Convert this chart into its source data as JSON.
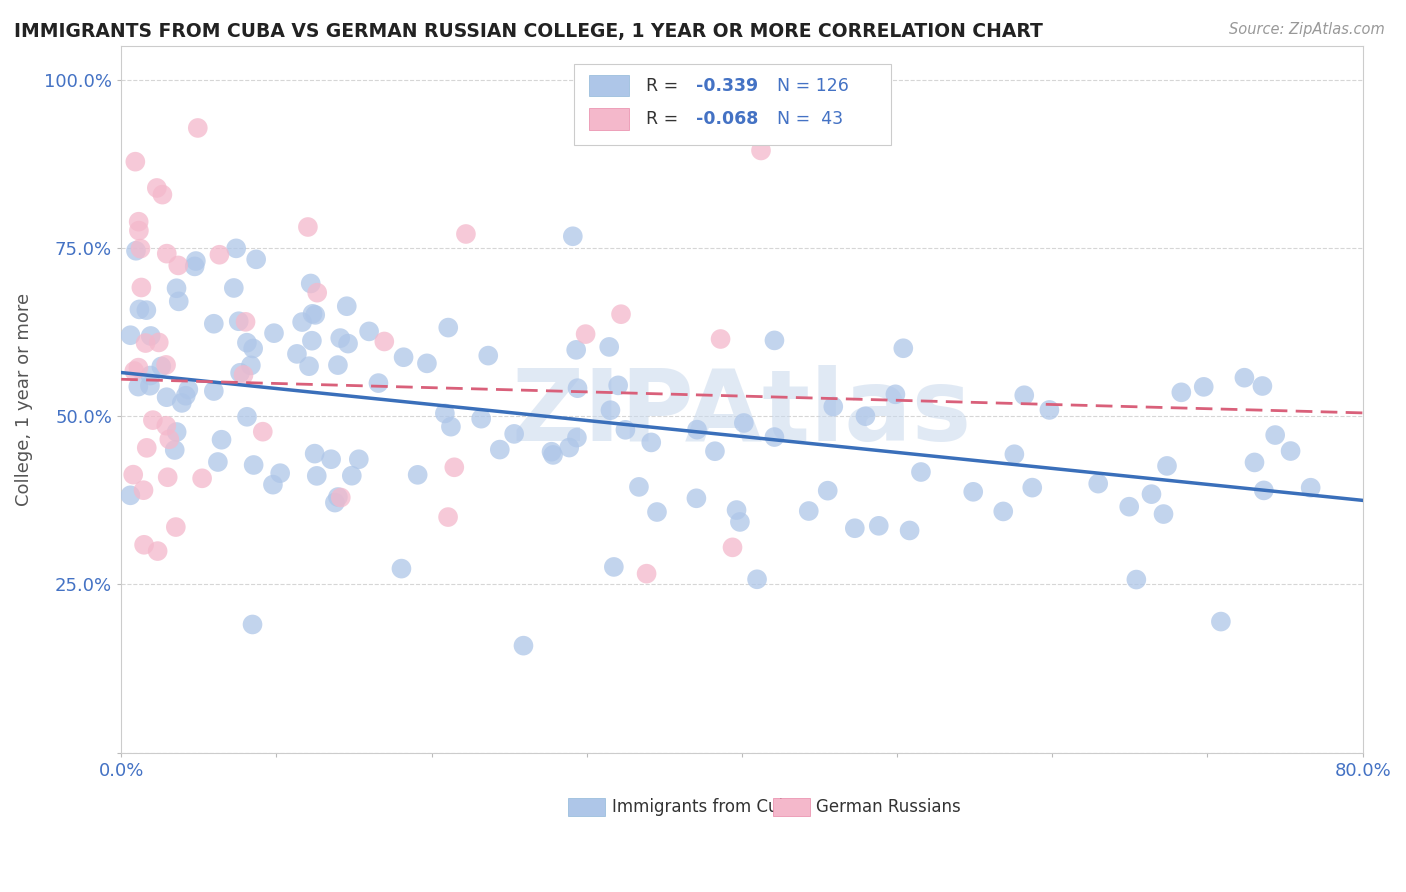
{
  "title": "IMMIGRANTS FROM CUBA VS GERMAN RUSSIAN COLLEGE, 1 YEAR OR MORE CORRELATION CHART",
  "source_text": "Source: ZipAtlas.com",
  "ylabel": "College, 1 year or more",
  "xlim": [
    0.0,
    0.8
  ],
  "ylim": [
    0.0,
    1.05
  ],
  "xtick_positions": [
    0.0,
    0.1,
    0.2,
    0.3,
    0.4,
    0.5,
    0.6,
    0.7,
    0.8
  ],
  "xticklabels": [
    "0.0%",
    "",
    "",
    "",
    "",
    "",
    "",
    "",
    "80.0%"
  ],
  "ytick_positions": [
    0.0,
    0.25,
    0.5,
    0.75,
    1.0
  ],
  "yticklabels": [
    "",
    "25.0%",
    "50.0%",
    "75.0%",
    "100.0%"
  ],
  "blue_color": "#aec6e8",
  "pink_color": "#f4b8cb",
  "trend_blue_color": "#3a6fba",
  "trend_pink_color": "#d9607a",
  "background_color": "#ffffff",
  "watermark_color": "#c8d8ec",
  "watermark_text": "ZIPAtlas",
  "title_color": "#222222",
  "ylabel_color": "#555555",
  "tick_label_color": "#4472c4",
  "source_color": "#999999",
  "legend_r1": "-0.339",
  "legend_n1": "126",
  "legend_r2": "-0.068",
  "legend_n2": "43",
  "blue_trend_start_y": 0.565,
  "blue_trend_end_y": 0.375,
  "pink_trend_start_y": 0.555,
  "pink_trend_end_y": 0.505,
  "seed": 99
}
